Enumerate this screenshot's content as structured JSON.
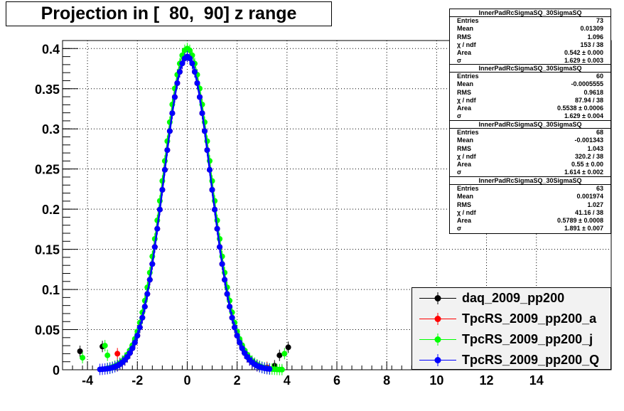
{
  "title": "Projection in [  80,  90] z range",
  "stats": [
    {
      "name": "InnerPadRcSigmaSQ_30SigmaSQ",
      "rows": [
        {
          "label": "Entries",
          "value": "73"
        },
        {
          "label": "Mean",
          "value": "0.01309"
        },
        {
          "label": "RMS",
          "value": "1.096"
        },
        {
          "label": "χ  / ndf",
          "value": "153 / 38"
        },
        {
          "label": "Area",
          "value": "0.542 ± 0.000"
        },
        {
          "label": "σ",
          "value": "1.629 ± 0.003"
        }
      ]
    },
    {
      "name": "InnerPadRcSigmaSQ_30SigmaSQ",
      "rows": [
        {
          "label": "Entries",
          "value": "60"
        },
        {
          "label": "Mean",
          "value": "-0.0005555"
        },
        {
          "label": "RMS",
          "value": "0.9618"
        },
        {
          "label": "χ  / ndf",
          "value": "87.94 / 38"
        },
        {
          "label": "Area",
          "value": "0.5538 ± 0.0006"
        },
        {
          "label": "σ",
          "value": "1.629 ± 0.004"
        }
      ]
    },
    {
      "name": "InnerPadRcSigmaSQ_30SigmaSQ",
      "rows": [
        {
          "label": "Entries",
          "value": "68"
        },
        {
          "label": "Mean",
          "value": "-0.001343"
        },
        {
          "label": "RMS",
          "value": "1.043"
        },
        {
          "label": "χ  / ndf",
          "value": "320.2 / 38"
        },
        {
          "label": "Area",
          "value": "0.55 ± 0.00"
        },
        {
          "label": "σ",
          "value": "1.614 ± 0.002"
        }
      ]
    },
    {
      "name": "InnerPadRcSigmaSQ_30SigmaSQ",
      "rows": [
        {
          "label": "Entries",
          "value": "63"
        },
        {
          "label": "Mean",
          "value": "0.001974"
        },
        {
          "label": "RMS",
          "value": "1.027"
        },
        {
          "label": "χ  / ndf",
          "value": "41.16 / 38"
        },
        {
          "label": "Area",
          "value": "0.5789 ± 0.0008"
        },
        {
          "label": "σ",
          "value": "1.891 ± 0.007"
        }
      ]
    }
  ],
  "legend": [
    {
      "label": "daq_2009_pp200",
      "color": "#000000"
    },
    {
      "label": "TpcRS_2009_pp200_a",
      "color": "#ff0000"
    },
    {
      "label": "TpcRS_2009_pp200_j",
      "color": "#00ff00"
    },
    {
      "label": "TpcRS_2009_pp200_Q",
      "color": "#0000ff"
    }
  ],
  "chart_data": {
    "type": "scatter",
    "xlim": [
      -5,
      17
    ],
    "ylim": [
      0,
      0.41
    ],
    "xticks": [
      "-4",
      "-2",
      "0",
      "2",
      "4",
      "6",
      "8",
      "10",
      "12",
      "14"
    ],
    "yticks": [
      "0",
      "0.05",
      "0.1",
      "0.15",
      "0.2",
      "0.25",
      "0.3",
      "0.35",
      "0.4"
    ],
    "grid": true,
    "legend_position": "bottom-right",
    "series": [
      {
        "name": "daq_2009_pp200",
        "color": "#000000",
        "sigma": 0.95,
        "amp": 0.39,
        "step": 0.1,
        "from": -2.8,
        "to": 2.8,
        "extra": [
          [
            -4.3,
            0.023
          ],
          [
            -3.4,
            0.029
          ],
          [
            3.5,
            0.005
          ],
          [
            3.7,
            0.018
          ],
          [
            4.05,
            0.028
          ]
        ]
      },
      {
        "name": "TpcRS_2009_pp200_a",
        "color": "#ff0000",
        "sigma": 0.95,
        "amp": 0.39,
        "step": 0.1,
        "from": -2.8,
        "to": 2.8,
        "extra": [
          [
            -2.8,
            0.02
          ],
          [
            3.2,
            0.003
          ]
        ]
      },
      {
        "name": "TpcRS_2009_pp200_j",
        "color": "#00ff00",
        "sigma": 0.97,
        "amp": 0.4,
        "step": 0.1,
        "from": -3.2,
        "to": 3.8,
        "extra": [
          [
            -4.2,
            0.015
          ],
          [
            -3.3,
            0.03
          ],
          [
            -3.2,
            0.018
          ],
          [
            3.9,
            0.02
          ]
        ]
      },
      {
        "name": "TpcRS_2009_pp200_Q",
        "color": "#0000ff",
        "sigma": 0.95,
        "amp": 0.39,
        "step": 0.1,
        "from": -3.5,
        "to": 3.3,
        "extra": []
      }
    ]
  }
}
